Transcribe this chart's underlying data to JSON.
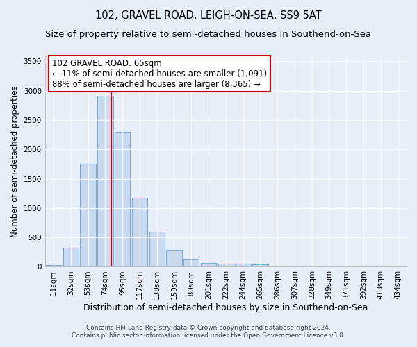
{
  "title": "102, GRAVEL ROAD, LEIGH-ON-SEA, SS9 5AT",
  "subtitle": "Size of property relative to semi-detached houses in Southend-on-Sea",
  "xlabel": "Distribution of semi-detached houses by size in Southend-on-Sea",
  "ylabel": "Number of semi-detached properties",
  "categories": [
    "11sqm",
    "32sqm",
    "53sqm",
    "74sqm",
    "95sqm",
    "117sqm",
    "138sqm",
    "159sqm",
    "180sqm",
    "201sqm",
    "222sqm",
    "244sqm",
    "265sqm",
    "286sqm",
    "307sqm",
    "328sqm",
    "349sqm",
    "371sqm",
    "392sqm",
    "413sqm",
    "434sqm"
  ],
  "values": [
    30,
    320,
    1760,
    2920,
    2300,
    1175,
    600,
    295,
    135,
    70,
    55,
    55,
    35,
    0,
    0,
    0,
    0,
    0,
    0,
    0,
    0
  ],
  "bar_color": "#c8d9f0",
  "bar_edge_color": "#7aaedc",
  "background_color": "#e8eef8",
  "grid_color": "#ffffff",
  "annotation_line1": "102 GRAVEL ROAD: 65sqm",
  "annotation_line2": "← 11% of semi-detached houses are smaller (1,091)",
  "annotation_line3": "88% of semi-detached houses are larger (8,365) →",
  "annotation_box_color": "#ffffff",
  "annotation_box_edge_color": "#cc0000",
  "vline_x": 3.35,
  "vline_color": "#cc0000",
  "ylim": [
    0,
    3600
  ],
  "yticks": [
    0,
    500,
    1000,
    1500,
    2000,
    2500,
    3000,
    3500
  ],
  "footer_line1": "Contains HM Land Registry data © Crown copyright and database right 2024.",
  "footer_line2": "Contains public sector information licensed under the Open Government Licence v3.0.",
  "title_fontsize": 10.5,
  "subtitle_fontsize": 9.5,
  "xlabel_fontsize": 9,
  "ylabel_fontsize": 8.5,
  "tick_fontsize": 7.5,
  "footer_fontsize": 6.5,
  "annotation_fontsize": 8.5
}
